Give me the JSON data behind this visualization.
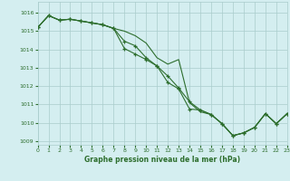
{
  "title": "Graphe pression niveau de la mer (hPa)",
  "background_color": "#d4eef0",
  "grid_color": "#aacccc",
  "line_color": "#2d6e2d",
  "xlim": [
    0,
    23
  ],
  "ylim": [
    1008.8,
    1016.6
  ],
  "yticks": [
    1009,
    1010,
    1011,
    1012,
    1013,
    1014,
    1015,
    1016
  ],
  "xticks": [
    0,
    1,
    2,
    3,
    4,
    5,
    6,
    7,
    8,
    9,
    10,
    11,
    12,
    13,
    14,
    15,
    16,
    17,
    18,
    19,
    20,
    21,
    22,
    23
  ],
  "series": [
    {
      "x": [
        0,
        1,
        2,
        3,
        4,
        5,
        6,
        7,
        8,
        9,
        10,
        11,
        12,
        13,
        14,
        15,
        16,
        17,
        18,
        19,
        20,
        21,
        22,
        23
      ],
      "y": [
        1015.2,
        1015.85,
        1015.6,
        1015.65,
        1015.55,
        1015.45,
        1015.35,
        1015.15,
        1015.0,
        1014.75,
        1014.35,
        1013.55,
        1013.2,
        1013.45,
        1011.1,
        1010.6,
        1010.45,
        1009.95,
        1009.3,
        1009.45,
        1009.75,
        1010.5,
        1009.95,
        1010.5
      ],
      "has_markers": false
    },
    {
      "x": [
        0,
        1,
        2,
        3,
        4,
        5,
        6,
        7,
        8,
        9,
        10,
        11,
        12,
        13,
        14,
        15,
        16,
        17,
        18,
        19,
        20,
        21,
        22,
        23
      ],
      "y": [
        1015.2,
        1015.85,
        1015.6,
        1015.65,
        1015.55,
        1015.45,
        1015.35,
        1015.15,
        1014.45,
        1014.2,
        1013.55,
        1013.1,
        1012.55,
        1011.9,
        1011.15,
        1010.7,
        1010.45,
        1009.95,
        1009.3,
        1009.45,
        1009.75,
        1010.5,
        1009.95,
        1010.5
      ],
      "has_markers": true
    },
    {
      "x": [
        0,
        1,
        2,
        3,
        4,
        5,
        6,
        7,
        8,
        9,
        10,
        11,
        12,
        13,
        14,
        15,
        16,
        17,
        18,
        19,
        20,
        21,
        22,
        23
      ],
      "y": [
        1015.2,
        1015.85,
        1015.6,
        1015.65,
        1015.55,
        1015.45,
        1015.35,
        1015.15,
        1014.05,
        1013.75,
        1013.45,
        1013.1,
        1012.2,
        1011.85,
        1010.75,
        1010.7,
        1010.45,
        1009.95,
        1009.3,
        1009.45,
        1009.75,
        1010.5,
        1009.95,
        1010.5
      ],
      "has_markers": true
    }
  ]
}
